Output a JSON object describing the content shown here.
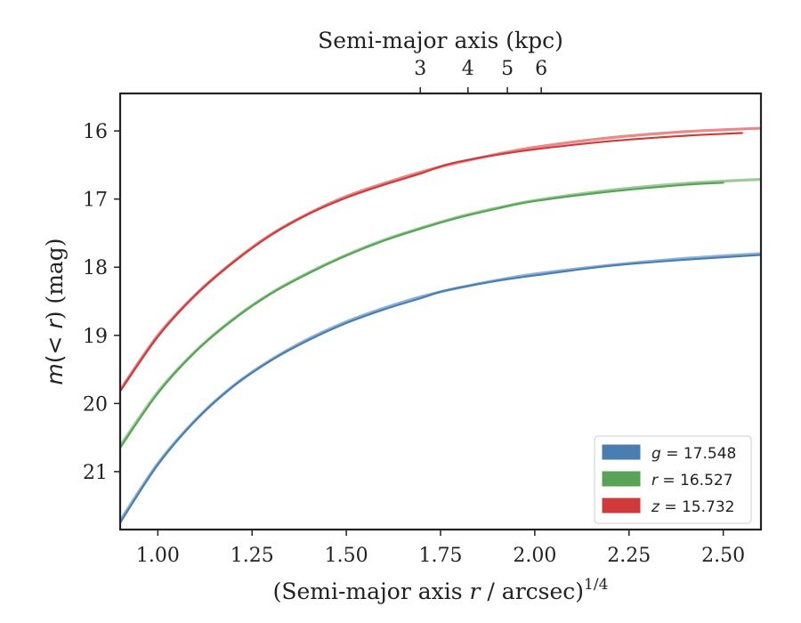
{
  "chart_data": {
    "type": "line",
    "xlabel_parts": [
      "(Semi-major axis ",
      "r",
      " / arcsec)",
      "1/4"
    ],
    "ylabel_parts": [
      "m",
      "(< ",
      "r",
      ") (mag)"
    ],
    "top_xlabel": "Semi-major axis (kpc)",
    "xlim": [
      0.9,
      2.6
    ],
    "ylim": [
      21.85,
      15.45
    ],
    "y_inverted": true,
    "x_ticks": [
      1.0,
      1.25,
      1.5,
      1.75,
      2.0,
      2.25,
      2.5
    ],
    "x_tick_labels": [
      "1.00",
      "1.25",
      "1.50",
      "1.75",
      "2.00",
      "2.25",
      "2.50"
    ],
    "y_ticks": [
      16,
      17,
      18,
      19,
      20,
      21
    ],
    "y_tick_labels": [
      "16",
      "17",
      "18",
      "19",
      "20",
      "21"
    ],
    "top_x_ticks_kpc": [
      3,
      4,
      5,
      6
    ],
    "top_x_tick_labels": [
      "3",
      "4",
      "5",
      "6"
    ],
    "kpc_per_arcsec": 0.3624,
    "grid": false,
    "legend_position": "lower-right",
    "series": [
      {
        "name": "g = 17.548",
        "legend_parts": [
          "g",
          " = 17.548"
        ],
        "color": "#4a7eb0",
        "model_color": "#8fb3d8",
        "model_x": [
          0.9,
          1.0,
          1.1,
          1.2,
          1.3,
          1.4,
          1.5,
          1.6,
          1.7,
          1.8,
          1.9,
          2.0,
          2.2,
          2.4,
          2.6
        ],
        "model_y": [
          21.72,
          20.88,
          20.24,
          19.74,
          19.36,
          19.05,
          18.8,
          18.6,
          18.43,
          18.3,
          18.19,
          18.1,
          17.97,
          17.87,
          17.8
        ],
        "data_x": [
          0.9,
          1.0,
          1.1,
          1.2,
          1.3,
          1.4,
          1.5,
          1.6,
          1.7,
          1.75,
          1.8,
          1.9,
          2.0,
          2.2,
          2.4,
          2.6
        ],
        "data_y": [
          21.75,
          20.9,
          20.25,
          19.75,
          19.37,
          19.07,
          18.82,
          18.62,
          18.45,
          18.36,
          18.3,
          18.2,
          18.12,
          17.98,
          17.89,
          17.82
        ]
      },
      {
        "name": "r = 16.527",
        "legend_parts": [
          "r",
          " = 16.527"
        ],
        "color": "#58a355",
        "model_color": "#9ccd99",
        "model_x": [
          0.9,
          1.0,
          1.1,
          1.2,
          1.3,
          1.4,
          1.5,
          1.6,
          1.7,
          1.8,
          1.9,
          2.0,
          2.2,
          2.4,
          2.6
        ],
        "model_y": [
          20.62,
          19.83,
          19.23,
          18.76,
          18.38,
          18.08,
          17.82,
          17.6,
          17.42,
          17.26,
          17.13,
          17.02,
          16.87,
          16.77,
          16.71
        ],
        "data_x": [
          0.9,
          1.0,
          1.1,
          1.2,
          1.3,
          1.4,
          1.5,
          1.6,
          1.7,
          1.8,
          1.9,
          2.0,
          2.2,
          2.4,
          2.5
        ],
        "data_y": [
          20.65,
          19.85,
          19.24,
          18.77,
          18.39,
          18.09,
          17.83,
          17.61,
          17.43,
          17.27,
          17.14,
          17.03,
          16.89,
          16.79,
          16.76
        ]
      },
      {
        "name": "z = 15.732",
        "legend_parts": [
          "z",
          " = 15.732"
        ],
        "color": "#d03a3a",
        "model_color": "#e88a8a",
        "model_x": [
          0.9,
          1.0,
          1.1,
          1.2,
          1.3,
          1.4,
          1.5,
          1.6,
          1.7,
          1.8,
          1.9,
          2.0,
          2.2,
          2.4,
          2.6
        ],
        "model_y": [
          19.8,
          19.0,
          18.4,
          17.92,
          17.52,
          17.21,
          16.96,
          16.77,
          16.6,
          16.46,
          16.34,
          16.24,
          16.1,
          16.01,
          15.96
        ],
        "data_x": [
          0.9,
          1.0,
          1.1,
          1.2,
          1.3,
          1.4,
          1.5,
          1.6,
          1.7,
          1.75,
          1.8,
          1.9,
          2.0,
          2.2,
          2.4,
          2.55
        ],
        "data_y": [
          19.82,
          19.02,
          18.41,
          17.93,
          17.53,
          17.22,
          16.98,
          16.79,
          16.62,
          16.52,
          16.45,
          16.35,
          16.27,
          16.15,
          16.07,
          16.03
        ]
      }
    ]
  }
}
